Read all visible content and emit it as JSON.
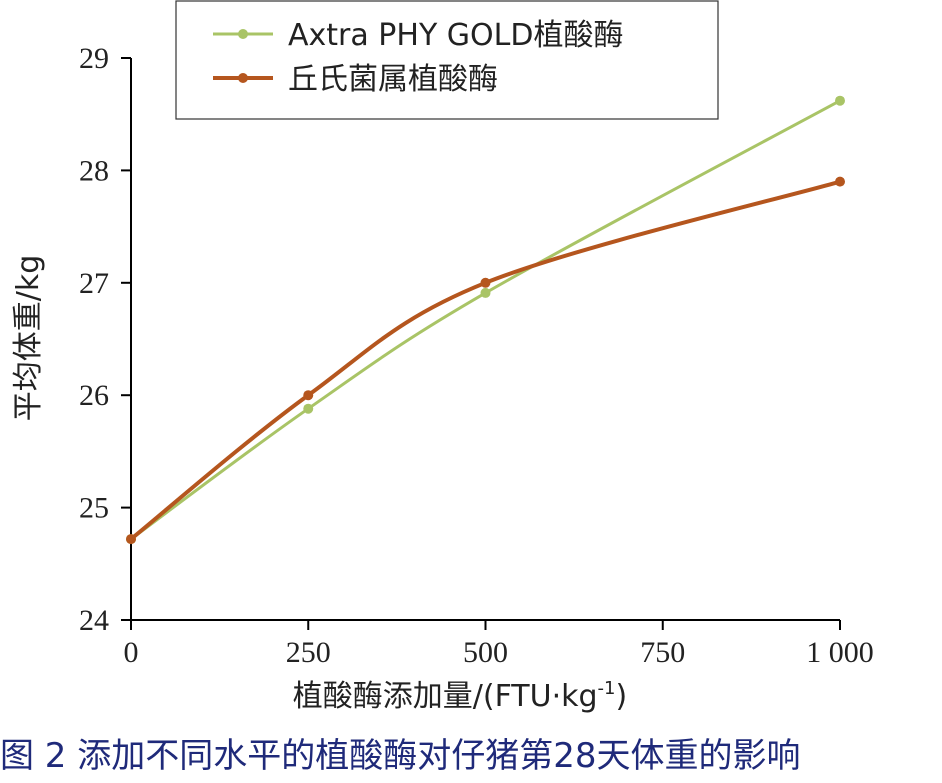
{
  "chart_data": {
    "type": "line",
    "x": [
      0,
      250,
      500,
      1000
    ],
    "x_tick_labels": [
      "0",
      "250",
      "500",
      "750",
      "1 000"
    ],
    "x_ticks": [
      0,
      250,
      500,
      750,
      1000
    ],
    "y_ticks": [
      24,
      25,
      26,
      27,
      28,
      29
    ],
    "y_tick_labels": [
      "24",
      "25",
      "26",
      "27",
      "28",
      "29"
    ],
    "xlim": [
      0,
      1000
    ],
    "ylim": [
      24,
      29
    ],
    "xlabel_main": "植酸酶添加量/(FTU·kg",
    "xlabel_sup": "-1",
    "xlabel_end": ")",
    "ylabel": "平均体重/kg",
    "grid": false,
    "legend_position": "top",
    "series": [
      {
        "name": "Axtra PHY GOLD植酸酶",
        "values": [
          24.72,
          25.88,
          26.91,
          28.62
        ],
        "color": "#a9c466"
      },
      {
        "name": "丘氏菌属植酸酶",
        "values": [
          24.72,
          26.0,
          27.0,
          27.9
        ],
        "color": "#b5561e"
      }
    ]
  },
  "caption": "图 2  添加不同水平的植酸酶对仔猪第28天体重的影响",
  "colors": {
    "axis": "#000000",
    "caption": "#1f2a7a"
  }
}
